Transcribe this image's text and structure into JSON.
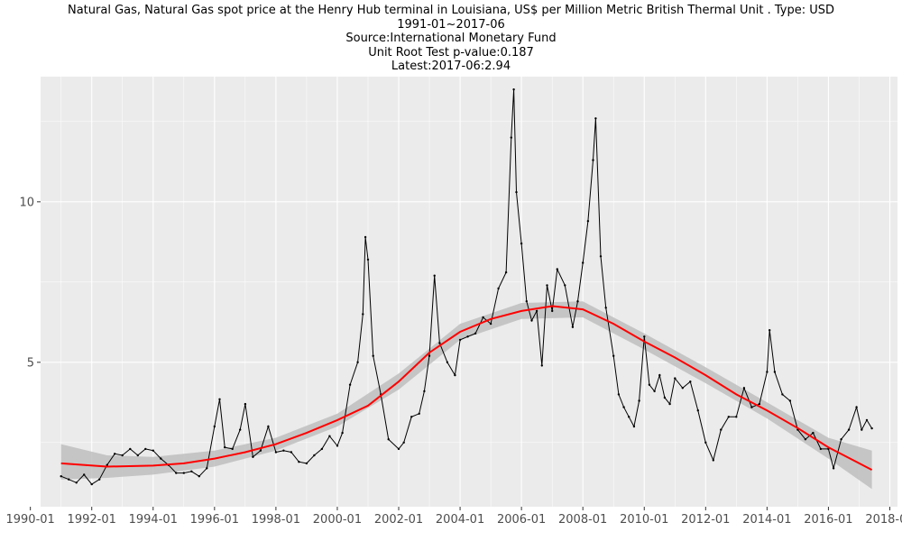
{
  "chart_data": {
    "type": "line",
    "title_lines": [
      "Natural Gas, Natural Gas spot price at the Henry Hub terminal in Louisiana, US$ per Million Metric British Thermal Unit . Type: USD",
      "1991-01~2017-06",
      "Source:International Monetary Fund",
      "Unit Root Test p-value:0.187",
      "Latest:2017-06:2.94"
    ],
    "xlabel": "",
    "ylabel": "",
    "x_ticks": [
      "1990-01",
      "1992-01",
      "1994-01",
      "1996-01",
      "1998-01",
      "2000-01",
      "2002-01",
      "2004-01",
      "2006-01",
      "2008-01",
      "2010-01",
      "2012-01",
      "2014-01",
      "2016-01",
      "2018-01"
    ],
    "y_ticks": [
      5,
      10
    ],
    "xlim": [
      "1990-05",
      "2018-04"
    ],
    "ylim": [
      0.5,
      13.9
    ],
    "grid": true,
    "colors": {
      "panel": "#ebebeb",
      "grid": "#ffffff",
      "series": "#000000",
      "smooth": "#ff0000",
      "band": "#bebebe"
    },
    "series": [
      {
        "points": [
          [
            "1991-01",
            1.45
          ],
          [
            "1991-04",
            1.35
          ],
          [
            "1991-07",
            1.25
          ],
          [
            "1991-10",
            1.5
          ],
          [
            "1992-01",
            1.2
          ],
          [
            "1992-04",
            1.35
          ],
          [
            "1992-07",
            1.8
          ],
          [
            "1992-10",
            2.15
          ],
          [
            "1993-01",
            2.1
          ],
          [
            "1993-04",
            2.3
          ],
          [
            "1993-07",
            2.1
          ],
          [
            "1993-10",
            2.3
          ],
          [
            "1994-01",
            2.25
          ],
          [
            "1994-04",
            2.0
          ],
          [
            "1994-07",
            1.8
          ],
          [
            "1994-10",
            1.55
          ],
          [
            "1995-01",
            1.55
          ],
          [
            "1995-04",
            1.6
          ],
          [
            "1995-07",
            1.45
          ],
          [
            "1995-10",
            1.7
          ],
          [
            "1996-01",
            3.0
          ],
          [
            "1996-03",
            3.85
          ],
          [
            "1996-05",
            2.35
          ],
          [
            "1996-08",
            2.3
          ],
          [
            "1996-11",
            2.9
          ],
          [
            "1997-01",
            3.7
          ],
          [
            "1997-04",
            2.05
          ],
          [
            "1997-07",
            2.25
          ],
          [
            "1997-10",
            3.0
          ],
          [
            "1998-01",
            2.2
          ],
          [
            "1998-04",
            2.25
          ],
          [
            "1998-07",
            2.2
          ],
          [
            "1998-10",
            1.9
          ],
          [
            "1999-01",
            1.85
          ],
          [
            "1999-04",
            2.1
          ],
          [
            "1999-07",
            2.3
          ],
          [
            "1999-10",
            2.7
          ],
          [
            "2000-01",
            2.4
          ],
          [
            "2000-03",
            2.8
          ],
          [
            "2000-06",
            4.3
          ],
          [
            "2000-09",
            5.0
          ],
          [
            "2000-11",
            6.5
          ],
          [
            "2000-12",
            8.9
          ],
          [
            "2001-01",
            8.2
          ],
          [
            "2001-03",
            5.2
          ],
          [
            "2001-06",
            4.0
          ],
          [
            "2001-09",
            2.6
          ],
          [
            "2002-01",
            2.3
          ],
          [
            "2002-03",
            2.5
          ],
          [
            "2002-06",
            3.3
          ],
          [
            "2002-09",
            3.4
          ],
          [
            "2002-11",
            4.1
          ],
          [
            "2003-01",
            5.2
          ],
          [
            "2003-03",
            7.7
          ],
          [
            "2003-05",
            5.6
          ],
          [
            "2003-08",
            5.0
          ],
          [
            "2003-11",
            4.6
          ],
          [
            "2004-01",
            5.7
          ],
          [
            "2004-04",
            5.8
          ],
          [
            "2004-07",
            5.9
          ],
          [
            "2004-10",
            6.4
          ],
          [
            "2005-01",
            6.2
          ],
          [
            "2005-04",
            7.3
          ],
          [
            "2005-07",
            7.8
          ],
          [
            "2005-09",
            12.0
          ],
          [
            "2005-10",
            13.5
          ],
          [
            "2005-11",
            10.3
          ],
          [
            "2006-01",
            8.7
          ],
          [
            "2006-03",
            6.9
          ],
          [
            "2006-05",
            6.3
          ],
          [
            "2006-07",
            6.6
          ],
          [
            "2006-09",
            4.9
          ],
          [
            "2006-11",
            7.4
          ],
          [
            "2007-01",
            6.6
          ],
          [
            "2007-03",
            7.9
          ],
          [
            "2007-06",
            7.4
          ],
          [
            "2007-09",
            6.1
          ],
          [
            "2007-11",
            6.9
          ],
          [
            "2008-01",
            8.1
          ],
          [
            "2008-03",
            9.4
          ],
          [
            "2008-05",
            11.3
          ],
          [
            "2008-06",
            12.6
          ],
          [
            "2008-08",
            8.3
          ],
          [
            "2008-10",
            6.7
          ],
          [
            "2009-01",
            5.2
          ],
          [
            "2009-03",
            4.0
          ],
          [
            "2009-05",
            3.6
          ],
          [
            "2009-07",
            3.3
          ],
          [
            "2009-09",
            3.0
          ],
          [
            "2009-11",
            3.8
          ],
          [
            "2010-01",
            5.8
          ],
          [
            "2010-03",
            4.3
          ],
          [
            "2010-05",
            4.1
          ],
          [
            "2010-07",
            4.6
          ],
          [
            "2010-09",
            3.9
          ],
          [
            "2010-11",
            3.7
          ],
          [
            "2011-01",
            4.5
          ],
          [
            "2011-04",
            4.2
          ],
          [
            "2011-07",
            4.4
          ],
          [
            "2011-10",
            3.5
          ],
          [
            "2012-01",
            2.5
          ],
          [
            "2012-04",
            1.95
          ],
          [
            "2012-07",
            2.9
          ],
          [
            "2012-10",
            3.3
          ],
          [
            "2013-01",
            3.3
          ],
          [
            "2013-04",
            4.2
          ],
          [
            "2013-07",
            3.6
          ],
          [
            "2013-10",
            3.7
          ],
          [
            "2014-01",
            4.7
          ],
          [
            "2014-02",
            6.0
          ],
          [
            "2014-04",
            4.7
          ],
          [
            "2014-07",
            4.0
          ],
          [
            "2014-10",
            3.8
          ],
          [
            "2015-01",
            2.9
          ],
          [
            "2015-04",
            2.6
          ],
          [
            "2015-07",
            2.8
          ],
          [
            "2015-10",
            2.3
          ],
          [
            "2016-01",
            2.3
          ],
          [
            "2016-03",
            1.7
          ],
          [
            "2016-06",
            2.6
          ],
          [
            "2016-09",
            2.9
          ],
          [
            "2016-12",
            3.6
          ],
          [
            "2017-02",
            2.9
          ],
          [
            "2017-04",
            3.2
          ],
          [
            "2017-06",
            2.94
          ]
        ]
      },
      {
        "type": "smooth",
        "points": [
          [
            "1991-01",
            1.85
          ],
          [
            "1992-07",
            1.75
          ],
          [
            "1994-01",
            1.78
          ],
          [
            "1995-01",
            1.85
          ],
          [
            "1996-01",
            2.0
          ],
          [
            "1997-01",
            2.2
          ],
          [
            "1998-01",
            2.45
          ],
          [
            "1999-01",
            2.8
          ],
          [
            "2000-01",
            3.2
          ],
          [
            "2001-01",
            3.65
          ],
          [
            "2002-01",
            4.4
          ],
          [
            "2003-01",
            5.3
          ],
          [
            "2004-01",
            5.95
          ],
          [
            "2005-01",
            6.35
          ],
          [
            "2006-01",
            6.6
          ],
          [
            "2007-01",
            6.75
          ],
          [
            "2008-01",
            6.65
          ],
          [
            "2009-01",
            6.2
          ],
          [
            "2010-01",
            5.65
          ],
          [
            "2011-01",
            5.15
          ],
          [
            "2012-01",
            4.6
          ],
          [
            "2013-01",
            4.0
          ],
          [
            "2014-01",
            3.5
          ],
          [
            "2015-01",
            2.95
          ],
          [
            "2016-01",
            2.35
          ],
          [
            "2017-06",
            1.65
          ]
        ],
        "band": [
          [
            "1991-01",
            1.35,
            2.45
          ],
          [
            "1992-07",
            1.4,
            2.1
          ],
          [
            "1994-01",
            1.5,
            2.05
          ],
          [
            "1996-01",
            1.75,
            2.25
          ],
          [
            "1998-01",
            2.25,
            2.65
          ],
          [
            "2000-01",
            3.0,
            3.4
          ],
          [
            "2002-01",
            4.15,
            4.65
          ],
          [
            "2004-01",
            5.7,
            6.2
          ],
          [
            "2006-01",
            6.35,
            6.85
          ],
          [
            "2008-01",
            6.4,
            6.9
          ],
          [
            "2010-01",
            5.4,
            5.9
          ],
          [
            "2012-01",
            4.35,
            4.85
          ],
          [
            "2014-01",
            3.25,
            3.75
          ],
          [
            "2016-01",
            2.0,
            2.65
          ],
          [
            "2017-06",
            1.05,
            2.25
          ]
        ]
      }
    ]
  }
}
